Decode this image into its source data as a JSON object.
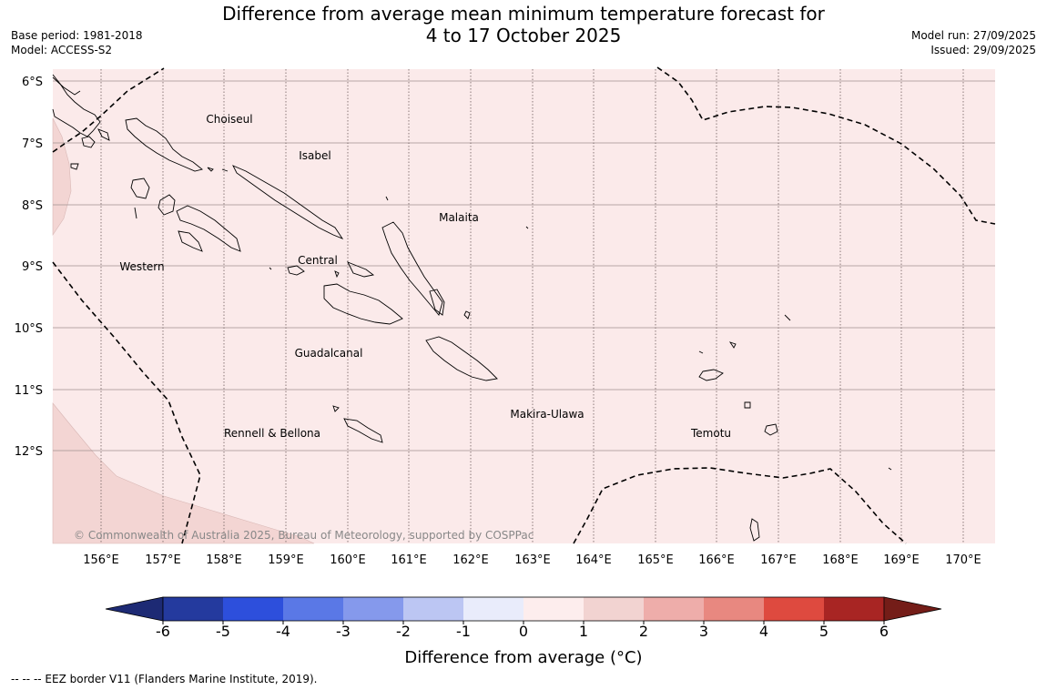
{
  "header": {
    "title_line1": "Difference from average mean minimum temperature forecast for",
    "title_line2": "4 to 17 October 2025",
    "base_period": "Base period: 1981-2018",
    "model": "Model: ACCESS-S2",
    "model_run": "Model run: 27/09/2025",
    "issued": "Issued: 29/09/2025"
  },
  "map": {
    "lat_labels": [
      "6°S",
      "7°S",
      "8°S",
      "9°S",
      "10°S",
      "11°S",
      "12°S"
    ],
    "lon_labels": [
      "156°E",
      "157°E",
      "158°E",
      "159°E",
      "160°E",
      "161°E",
      "162°E",
      "163°E",
      "164°E",
      "165°E",
      "166°E",
      "167°E",
      "168°E",
      "169°E",
      "170°E"
    ],
    "provinces": [
      "Choiseul",
      "Isabel",
      "Malaita",
      "Western",
      "Central",
      "Guadalcanal",
      "Makira-Ulawa",
      "Rennell & Bellona",
      "Temotu"
    ],
    "copyright": "© Commonwealth of Australia 2025, Bureau of Meteorology, supported by COSPPac",
    "colors": {
      "anomaly_0_1": "#fbeaea",
      "anomaly_1_2": "#f3d5d3"
    }
  },
  "colorbar": {
    "ticks": [
      "-6",
      "-5",
      "-4",
      "-3",
      "-2",
      "-1",
      "0",
      "1",
      "2",
      "3",
      "4",
      "5",
      "6"
    ],
    "colors": [
      "#243a9e",
      "#2d4fdc",
      "#5a78e6",
      "#8599ec",
      "#bcc6f3",
      "#e9ecfb",
      "#fdeded",
      "#f2d3d1",
      "#eeadaa",
      "#e88880",
      "#de4a3f",
      "#a82523"
    ],
    "low_extend_color": "#1d2a74",
    "high_extend_color": "#741d18",
    "label": "Difference from average (°C)"
  },
  "footnote": "--  --  -- EEZ border V11 (Flanders Marine Institute, 2019)."
}
